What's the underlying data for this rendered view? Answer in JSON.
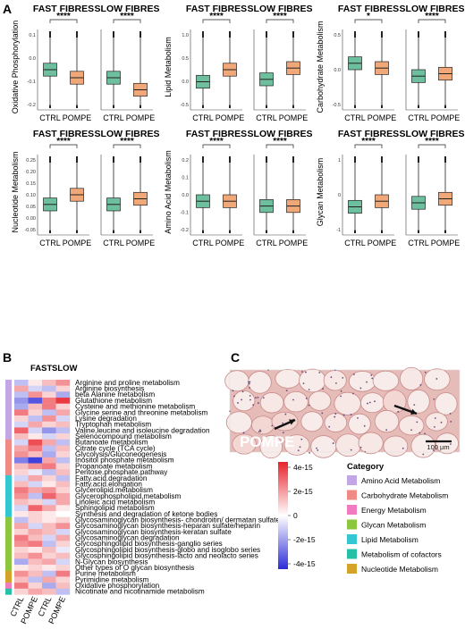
{
  "panel_labels": {
    "a": "A",
    "b": "B",
    "c": "C"
  },
  "panel_a": {
    "plots": [
      {
        "ylabel": "Oxidative Phosphorylation",
        "yticks": [
          "0.1",
          "0.0",
          "-0.1",
          "-0.2"
        ],
        "fast": {
          "title": "FAST FIBRES",
          "sig": "****"
        },
        "slow": {
          "title": "SLOW FIBRES",
          "sig": "****"
        }
      },
      {
        "ylabel": "Lipid Metabolism",
        "yticks": [
          "1.0",
          "0.5",
          "0.0",
          "-0.5"
        ],
        "fast": {
          "title": "FAST FIBRES",
          "sig": "****"
        },
        "slow": {
          "title": "SLOW FIBRES",
          "sig": "****"
        }
      },
      {
        "ylabel": "Carbohydrate Metabolism",
        "yticks": [
          "0.5",
          "0.0",
          "-0.5"
        ],
        "fast": {
          "title": "FAST FIBRES",
          "sig": "*"
        },
        "slow": {
          "title": "SLOW FIBRES",
          "sig": "****"
        }
      },
      {
        "ylabel": "Nucleotide Metabolism",
        "yticks": [
          "0.25",
          "0.20",
          "0.15",
          "0.10",
          "0.05",
          "0.00",
          "-0.05"
        ],
        "fast": {
          "title": "FAST FIBRES",
          "sig": "****"
        },
        "slow": {
          "title": "SLOW FIBRES",
          "sig": "****"
        }
      },
      {
        "ylabel": "Amino Acid Metabolism",
        "yticks": [
          "0.2",
          "0.1",
          "0.0",
          "-0.1",
          "-0.2"
        ],
        "fast": {
          "title": "FAST FIBRES",
          "sig": "****"
        },
        "slow": {
          "title": "SLOW FIBRES",
          "sig": "****"
        }
      },
      {
        "ylabel": "Glycan Metabolism",
        "yticks": [
          "1",
          "0",
          "-1"
        ],
        "fast": {
          "title": "FAST FIBRES",
          "sig": "****"
        },
        "slow": {
          "title": "SLOW FIBRES",
          "sig": "****"
        }
      }
    ],
    "x_categories": [
      "CTRL",
      "POMPE"
    ],
    "colors": {
      "ctrl": "#6dbf9e",
      "pompe": "#f0a878"
    }
  },
  "panel_b": {
    "headers": {
      "fast": "FAST",
      "slow": "SLOW"
    },
    "columns": [
      "CTRL",
      "POMPE",
      "CTRL",
      "POMPE"
    ],
    "pathways": [
      {
        "name": "Arginine and proline metabolism",
        "cat": "amino",
        "v": [
          -0.3,
          0.1,
          0.3,
          0.5
        ]
      },
      {
        "name": "Arginine biosynthesis",
        "cat": "amino",
        "v": [
          0.4,
          -0.2,
          -0.3,
          0.2
        ]
      },
      {
        "name": "beta Alanine metabolism",
        "cat": "amino",
        "v": [
          -0.3,
          0.5,
          0.2,
          -0.4
        ]
      },
      {
        "name": "Glutathione metabolism",
        "cat": "amino",
        "v": [
          -0.5,
          -0.8,
          0.6,
          0.9
        ]
      },
      {
        "name": "Cysteine and methionine metabolism",
        "cat": "amino",
        "v": [
          -0.4,
          0.3,
          0.6,
          0.2
        ]
      },
      {
        "name": "Glycine serine and threonine metabolism",
        "cat": "amino",
        "v": [
          0.6,
          0.2,
          -0.3,
          0.4
        ]
      },
      {
        "name": "Lysine degradation",
        "cat": "amino",
        "v": [
          0.2,
          -0.3,
          0.5,
          -0.2
        ]
      },
      {
        "name": "Tryptophan metabolism",
        "cat": "amino",
        "v": [
          -0.2,
          0.4,
          0.2,
          0.3
        ]
      },
      {
        "name": "Valine,leucine and isoleucine degradation",
        "cat": "amino",
        "v": [
          0.7,
          -0.2,
          -0.5,
          -0.3
        ]
      },
      {
        "name": "Selenocompound metabolism",
        "cat": "amino",
        "v": [
          0.3,
          0.1,
          -0.2,
          0.2
        ]
      },
      {
        "name": "Butanoate metabolism",
        "cat": "carb",
        "v": [
          -0.2,
          0.8,
          0.4,
          -0.3
        ]
      },
      {
        "name": "Citrate cycle (TCA cycle)",
        "cat": "carb",
        "v": [
          0.4,
          0.6,
          -0.3,
          0.3
        ]
      },
      {
        "name": "Glycolysis/Gluconeogenesis",
        "cat": "carb",
        "v": [
          0.5,
          0.3,
          -0.4,
          0.2
        ]
      },
      {
        "name": "Inositol phosphate metabolism",
        "cat": "carb",
        "v": [
          -0.6,
          -0.9,
          0.4,
          -0.3
        ]
      },
      {
        "name": "Propanoate metabolism",
        "cat": "carb",
        "v": [
          0.3,
          0.5,
          0.6,
          0.2
        ]
      },
      {
        "name": "Pentose.phosphate.pathway",
        "cat": "carb",
        "v": [
          0.2,
          -0.1,
          -0.3,
          0.3
        ]
      },
      {
        "name": "Fatty.acid.degradation",
        "cat": "lipid",
        "v": [
          -0.2,
          0.4,
          0.2,
          -0.3
        ]
      },
      {
        "name": "Fatty.acid.elongation",
        "cat": "lipid",
        "v": [
          0.3,
          -0.2,
          0.1,
          0.3
        ]
      },
      {
        "name": "Glycerolipid.metabolism",
        "cat": "lipid",
        "v": [
          0.6,
          0.4,
          0.5,
          0.2
        ]
      },
      {
        "name": "Glycerophospholipid.metabolism",
        "cat": "lipid",
        "v": [
          0.5,
          -0.3,
          0.7,
          0.4
        ]
      },
      {
        "name": "Linoleic acid metabolism",
        "cat": "lipid",
        "v": [
          0.3,
          0.2,
          -0.2,
          0.4
        ]
      },
      {
        "name": "Sphingolipid metabolism",
        "cat": "lipid",
        "v": [
          -0.2,
          0.7,
          0.4,
          0.1
        ]
      },
      {
        "name": "Synthesis and degradation of ketone bodies",
        "cat": "lipid",
        "v": [
          0.1,
          0.2,
          0.1,
          0.0
        ]
      },
      {
        "name": "Glycosaminoglycan biosynthesis- chondroitin/ dermatan sulfate",
        "cat": "glycan",
        "v": [
          -0.3,
          0.2,
          0.1,
          0.2
        ]
      },
      {
        "name": "Glycosaminoglycan biosynthesis-heparan sulfate/heparin",
        "cat": "glycan",
        "v": [
          0.4,
          -0.2,
          0.3,
          0.5
        ]
      },
      {
        "name": "Glycosaminoglycan biosynthesis-keratan sulfate",
        "cat": "glycan",
        "v": [
          0.2,
          0.4,
          0.3,
          -0.2
        ]
      },
      {
        "name": "Glycosaminoglycan degradation",
        "cat": "glycan",
        "v": [
          0.6,
          0.3,
          -0.2,
          0.4
        ]
      },
      {
        "name": "Glycosphingolipid biosynthesis-ganglio series",
        "cat": "glycan",
        "v": [
          0.5,
          0.6,
          -0.3,
          0.2
        ]
      },
      {
        "name": "Glycosphingolipid biosynthesis-globo and isoglobo series",
        "cat": "glycan",
        "v": [
          0.2,
          0.1,
          0.3,
          -0.1
        ]
      },
      {
        "name": "Glycosphingolipid biosynthesis-lacto and neolacto series",
        "cat": "glycan",
        "v": [
          0.3,
          0.5,
          0.2,
          0.3
        ]
      },
      {
        "name": "N-Glycan biosynthesis",
        "cat": "glycan",
        "v": [
          -0.4,
          0.3,
          0.4,
          -0.2
        ]
      },
      {
        "name": "Other types of O glycan biosynthesis",
        "cat": "glycan",
        "v": [
          0.1,
          0.2,
          0.1,
          0.2
        ]
      },
      {
        "name": "Purine metabolism",
        "cat": "nucleo",
        "v": [
          0.5,
          0.3,
          -0.3,
          0.6
        ]
      },
      {
        "name": "Pyrimidine metabolism",
        "cat": "nucleo",
        "v": [
          0.3,
          -0.3,
          0.4,
          0.2
        ]
      },
      {
        "name": "Oxidative phosphorylation",
        "cat": "energy",
        "v": [
          0.6,
          0.2,
          -0.4,
          0.3
        ]
      },
      {
        "name": "Nicotinate and nicotinamide metabolism",
        "cat": "cofactor",
        "v": [
          0.2,
          0.4,
          0.3,
          -0.3
        ]
      }
    ]
  },
  "panel_c": {
    "label": "POMPE",
    "scale_bar": "100 µm"
  },
  "colorbar": {
    "ticks": [
      "4e-15",
      "2e-15",
      "0",
      "-2e-15",
      "-4e-15"
    ],
    "high": "#e8232b",
    "mid": "#ffffff",
    "low": "#2b2bd8"
  },
  "category_legend": {
    "title": "Category",
    "items": [
      {
        "key": "amino",
        "label": "Amino Acid Metabolism",
        "color": "#c3a6e6"
      },
      {
        "key": "carb",
        "label": "Carbohydrate Metabolism",
        "color": "#f08a84"
      },
      {
        "key": "energy",
        "label": "Energy Metabolism",
        "color": "#f07bc0"
      },
      {
        "key": "glycan",
        "label": "Glycan Metabolism",
        "color": "#8cc63f"
      },
      {
        "key": "lipid",
        "label": "Lipid Metabolism",
        "color": "#34c6d3"
      },
      {
        "key": "cofactor",
        "label": "Metabolism of cofactors",
        "color": "#25c0a6"
      },
      {
        "key": "nucleo",
        "label": "Nucleotide Metabolism",
        "color": "#d3a32a"
      }
    ]
  }
}
